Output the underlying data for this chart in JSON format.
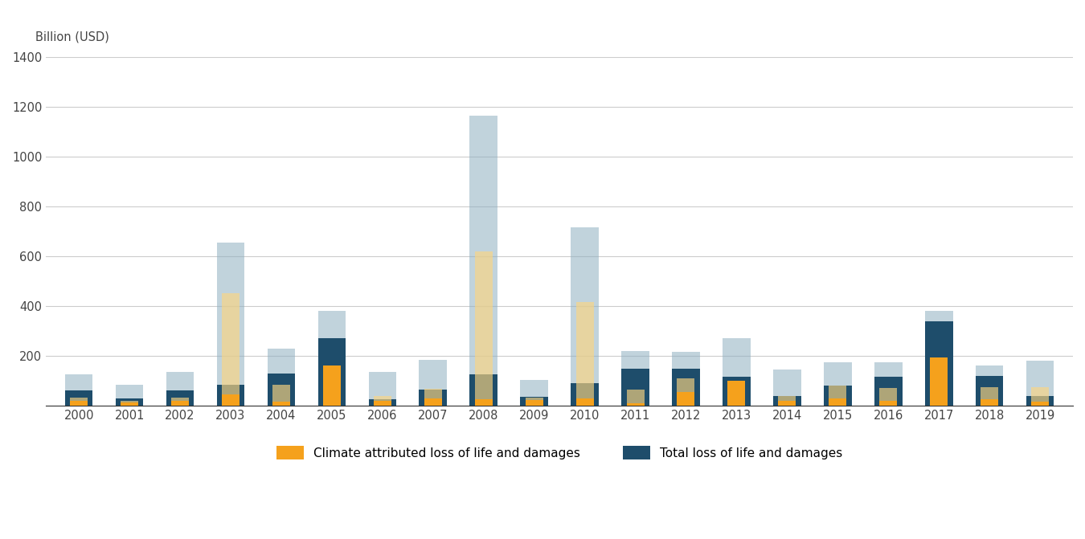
{
  "years": [
    2000,
    2001,
    2002,
    2003,
    2004,
    2005,
    2006,
    2007,
    2008,
    2009,
    2010,
    2011,
    2012,
    2013,
    2014,
    2015,
    2016,
    2017,
    2018,
    2019
  ],
  "total_solid": [
    60,
    30,
    60,
    85,
    130,
    270,
    25,
    65,
    125,
    35,
    90,
    150,
    150,
    115,
    38,
    80,
    115,
    340,
    120,
    40
  ],
  "total_transparent": [
    65,
    55,
    75,
    570,
    100,
    110,
    110,
    120,
    1040,
    70,
    625,
    70,
    65,
    155,
    108,
    95,
    58,
    40,
    42,
    140
  ],
  "climate_solid": [
    20,
    12,
    20,
    45,
    15,
    160,
    20,
    30,
    25,
    22,
    30,
    10,
    55,
    100,
    20,
    30,
    20,
    195,
    25,
    15
  ],
  "climate_transparent": [
    12,
    8,
    12,
    405,
    68,
    0,
    20,
    38,
    595,
    12,
    385,
    55,
    55,
    0,
    20,
    52,
    52,
    0,
    48,
    58
  ],
  "total_solid_color": "#1e4d6b",
  "total_light_color": "#8eafc0",
  "climate_solid_color": "#f5a11c",
  "climate_light_color": "#fcd580",
  "ylim": [
    0,
    1400
  ],
  "yticks": [
    0,
    200,
    400,
    600,
    800,
    1000,
    1200,
    1400
  ],
  "ylabel": "Billion (USD)",
  "legend_climate": "Climate attributed loss of life and damages",
  "legend_total": "Total loss of life and damages",
  "background_color": "#ffffff",
  "grid_color": "#cccccc",
  "total_bar_width": 0.55,
  "climate_bar_width": 0.35
}
